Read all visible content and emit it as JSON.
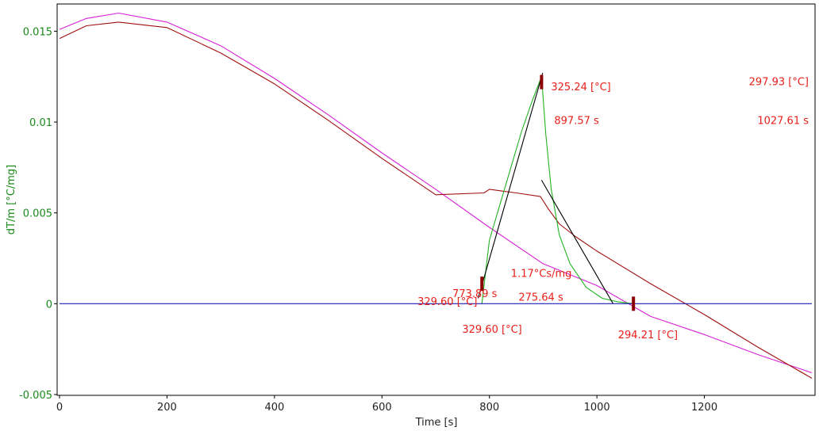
{
  "chart_data": {
    "type": "line",
    "xlabel": "Time [s]",
    "ylabel": "dT/m  [°C/mg]",
    "xlim": [
      0,
      1400
    ],
    "ylim": [
      -0.005,
      0.0165
    ],
    "x_ticks": [
      0,
      200,
      400,
      600,
      800,
      1000,
      1200
    ],
    "x_tick_labels": [
      "0",
      "200",
      "400",
      "600",
      "800",
      "1000",
      "1200"
    ],
    "y_ticks": [
      -0.005,
      0,
      0.005,
      0.01,
      0.015
    ],
    "y_tick_labels": [
      "-0.005",
      "0",
      "0.005",
      "0.01",
      "0.015"
    ],
    "grid": false,
    "colors": {
      "magenta": "#d620d6",
      "darkred": "#a01010",
      "green": "#22b422",
      "black": "#000000",
      "blue": "#1c1cb4",
      "annotation": "#e8201a"
    },
    "series": [
      {
        "color": "magenta",
        "x": [
          0,
          50,
          110,
          200,
          300,
          400,
          500,
          600,
          700,
          800,
          900,
          1000,
          1100,
          1200,
          1300,
          1400
        ],
        "y": [
          0.0151,
          0.0157,
          0.016,
          0.0155,
          0.0142,
          0.0124,
          0.0104,
          0.0083,
          0.0063,
          0.0042,
          0.0022,
          0.001,
          -0.0007,
          -0.0017,
          -0.0028,
          -0.0038
        ]
      },
      {
        "color": "darkred",
        "x": [
          0,
          50,
          110,
          200,
          300,
          400,
          500,
          600,
          700,
          790,
          800,
          850,
          895,
          910,
          930,
          960,
          1000,
          1100,
          1200,
          1300,
          1400
        ],
        "y": [
          0.0146,
          0.0153,
          0.0155,
          0.0152,
          0.0138,
          0.0121,
          0.0101,
          0.008,
          0.006,
          0.0061,
          0.0063,
          0.0061,
          0.0059,
          0.0052,
          0.0044,
          0.0037,
          0.0029,
          0.0011,
          -0.0006,
          -0.0024,
          -0.0041
        ]
      },
      {
        "color": "green",
        "x": [
          786,
          790,
          800,
          830,
          860,
          880,
          897,
          905,
          915,
          930,
          950,
          980,
          1010,
          1040,
          1068
        ],
        "y": [
          0.0,
          0.001,
          0.0035,
          0.0065,
          0.0095,
          0.0112,
          0.0125,
          0.0093,
          0.0063,
          0.0038,
          0.0022,
          0.0009,
          0.0003,
          0.0001,
          0.0
        ]
      },
      {
        "color": "black",
        "x": [
          779,
          899
        ],
        "y": [
          0.0003,
          0.0127
        ]
      },
      {
        "color": "black",
        "x": [
          897,
          1030
        ],
        "y": [
          0.0068,
          0.0
        ]
      },
      {
        "color": "blue",
        "x": [
          0,
          1400
        ],
        "y": [
          0,
          0
        ]
      }
    ],
    "markers": [
      {
        "x": 786,
        "y": 0.0011
      },
      {
        "x": 897,
        "y": 0.0122
      },
      {
        "x": 1068,
        "y": 0.0
      }
    ],
    "annotations": [
      {
        "text": "325.24 [°C]",
        "anchor_x": 897,
        "anchor_y": 0.012
      },
      {
        "text": "897.57 s",
        "anchor_x": 897,
        "anchor_y": 0.0108
      },
      {
        "text": "297.93 [°C]",
        "anchor_x": 1400,
        "anchor_y": 0.0123
      },
      {
        "text": "1027.61 s",
        "anchor_x": 1400,
        "anchor_y": 0.0108
      },
      {
        "text": "1.17°Cs/mg",
        "anchor_x": 840,
        "anchor_y": 0.0016
      },
      {
        "text": "773.89 s",
        "anchor_x": 773,
        "anchor_y": 0.0004
      },
      {
        "text": "329.60 [°C]",
        "anchor_x": 773,
        "anchor_y": 0.0001
      },
      {
        "text": "275.64 s",
        "anchor_x": 860,
        "anchor_y": 0.0003
      },
      {
        "text": "329.60 [°C]",
        "anchor_x": 770,
        "anchor_y": -0.0013
      },
      {
        "text": "294.21 [°C]",
        "anchor_x": 1060,
        "anchor_y": -0.0016
      }
    ]
  }
}
